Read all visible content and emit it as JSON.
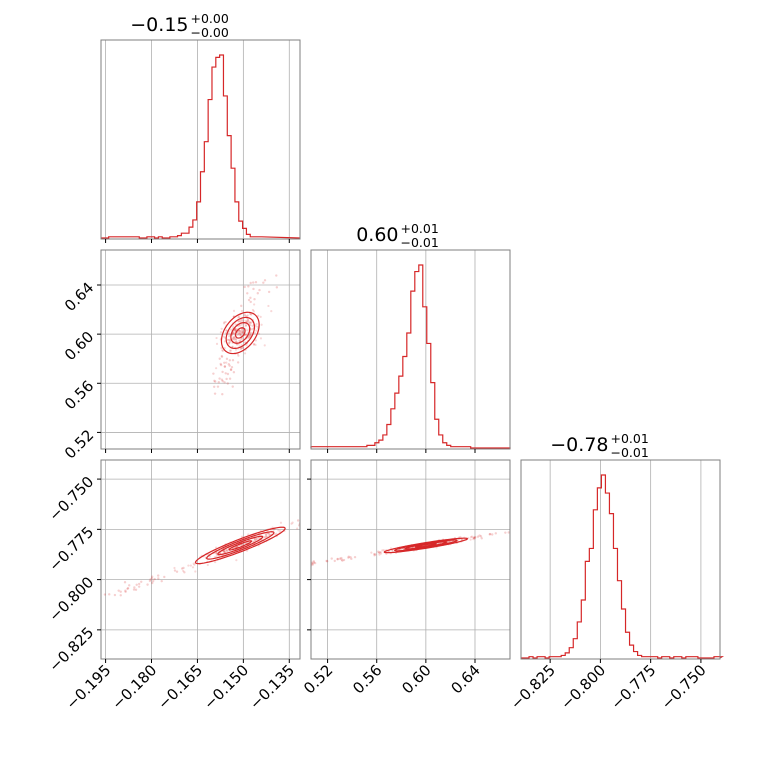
{
  "chart_data": {
    "type": "corner",
    "color": "#d62728",
    "parameters": [
      {
        "title_value": "−0.15",
        "title_plus": "+0.00",
        "title_minus": "−0.00",
        "range": [
          -0.1965,
          -0.1315
        ],
        "ticks": [
          -0.195,
          -0.18,
          -0.165,
          -0.15,
          -0.135
        ],
        "tick_labels": [
          "−0.195",
          "−0.180",
          "−0.165",
          "−0.150",
          "−0.135"
        ],
        "hist": {
          "edges_start": -0.1965,
          "bin_width": 0.00125,
          "counts": [
            0,
            0,
            1,
            1,
            1,
            1,
            1,
            1,
            1,
            1,
            0,
            0,
            1,
            1,
            0,
            1,
            0,
            0,
            1,
            1,
            2,
            4,
            4,
            9,
            15,
            30,
            55,
            80,
            115,
            142,
            150,
            152,
            118,
            85,
            58,
            30,
            14,
            8,
            3,
            1,
            1,
            1
          ]
        }
      },
      {
        "title_value": "0.60",
        "title_plus": "+0.01",
        "title_minus": "−0.01",
        "range": [
          0.5065,
          0.6685
        ],
        "ticks": [
          0.52,
          0.56,
          0.6,
          0.64
        ],
        "tick_labels": [
          "0.52",
          "0.56",
          "0.60",
          "0.64"
        ],
        "hist": {
          "edges_start": 0.5065,
          "bin_width": 0.00325,
          "counts": [
            1,
            1,
            1,
            1,
            1,
            1,
            1,
            1,
            1,
            1,
            1,
            1,
            1,
            1,
            2,
            2,
            4,
            6,
            10,
            18,
            30,
            42,
            55,
            70,
            88,
            120,
            135,
            140,
            108,
            80,
            50,
            22,
            10,
            4,
            2,
            1,
            1,
            1,
            1,
            1,
            0,
            0,
            0,
            0,
            0,
            0,
            0,
            0,
            0,
            0
          ]
        }
      },
      {
        "title_value": "−0.78",
        "title_plus": "+0.01",
        "title_minus": "−0.01",
        "range": [
          -0.8395,
          -0.7405
        ],
        "ticks": [
          -0.825,
          -0.8,
          -0.775,
          -0.75
        ],
        "tick_labels": [
          "−0.825",
          "−0.800",
          "−0.775",
          "−0.750"
        ],
        "hist": {
          "edges_start": -0.8395,
          "bin_width": 0.002,
          "counts": [
            0,
            0,
            1,
            0,
            1,
            1,
            0,
            1,
            1,
            1,
            2,
            4,
            8,
            15,
            28,
            45,
            75,
            85,
            115,
            132,
            142,
            128,
            112,
            85,
            60,
            38,
            20,
            10,
            5,
            2,
            1,
            1,
            1,
            1,
            0,
            1,
            1,
            0,
            1,
            1,
            0,
            1,
            1,
            1,
            0,
            0,
            0,
            0,
            1,
            1
          ]
        }
      }
    ],
    "pairs": [
      {
        "x": 0,
        "y": 1,
        "center": [
          -0.151,
          0.601
        ],
        "slope": 6.2,
        "along_sd": 0.0085,
        "perp_sd": 0.0028
      },
      {
        "x": 0,
        "y": 2,
        "center": [
          -0.151,
          -0.783
        ],
        "slope": 0.6,
        "along_sd": 0.0085,
        "perp_sd": 0.0014
      },
      {
        "x": 1,
        "y": 2,
        "center": [
          0.6,
          -0.783
        ],
        "slope": 0.098,
        "along_sd": 0.017,
        "perp_sd": 0.0007
      }
    ],
    "contour_levels_sigma": [
      0.5,
      1.0,
      1.5,
      2.0
    ],
    "grid": true
  }
}
